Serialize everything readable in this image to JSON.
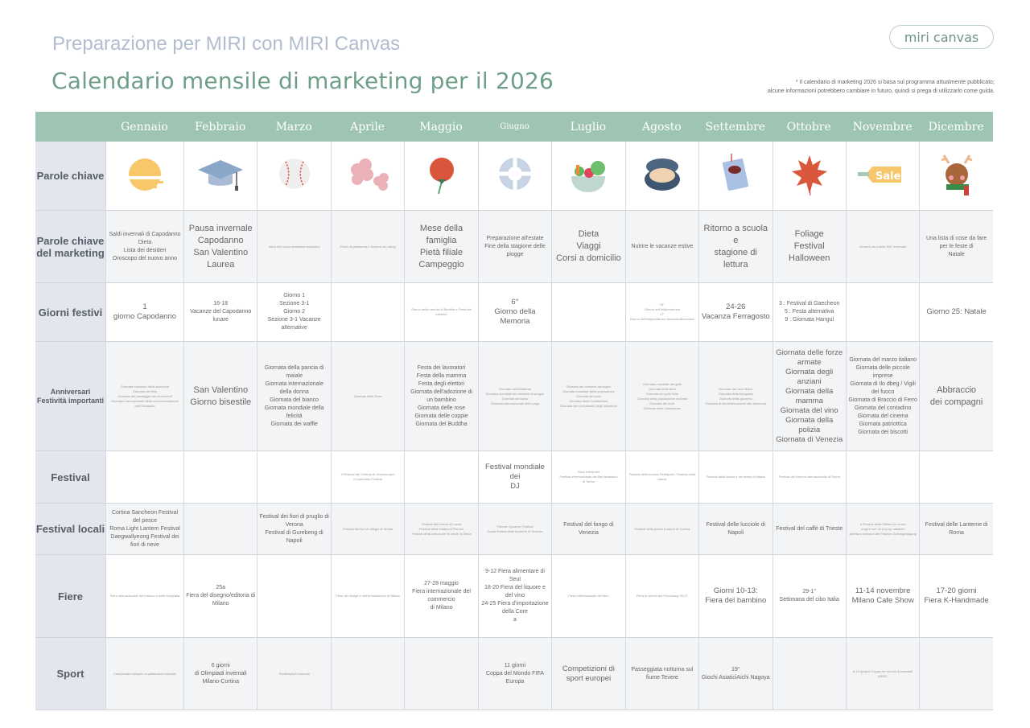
{
  "header": {
    "subtitle": "Preparazione per MIRI con MIRI Canvas",
    "title": "Calendario mensile di marketing per il 2026",
    "logo": "miri canvas",
    "note": [
      "* Il calendario di marketing 2026 si basa sul programma attualmente pubblicato;",
      "alcune informazioni potrebbero cambiare in futuro, quindi si prega di utilizzarlo come guida."
    ]
  },
  "months": [
    "Gennaio",
    "Febbraio",
    "Marzo",
    "Aprile",
    "Maggio",
    "Giugno",
    "Luglio",
    "Agosto",
    "Settembre",
    "Ottobre",
    "Novembre",
    "Dicembre"
  ],
  "keyword_icons": [
    "sunrise-icon",
    "graduation-cap-icon",
    "baseball-icon",
    "cherry-blossom-icon",
    "carnation-icon",
    "swim-ring-icon",
    "salad-bowl-icon",
    "samgyetang-pot-icon",
    "book-icon",
    "maple-leaf-icon",
    "sale-tag-icon",
    "reindeer-icon"
  ],
  "colors": {
    "header_green": "#9ec4b4",
    "title_green": "#6e9e88",
    "subtitle": "#b1bccf"
  },
  "rows": [
    {
      "label": "Parole chiave",
      "cells": []
    },
    {
      "label": "Parole chiave del marketing",
      "cells": [
        [
          "Saldi invernali di Capodanno",
          "Dieta",
          "Lista dei desideri",
          "Oroscopo del nuovo anno"
        ],
        [
          "Pausa invernale",
          "Capodanno",
          "San Valentino",
          "Laurea"
        ],
        [
          "Inizio del nuovo semestre scolastico"
        ],
        [
          "Picnic di primavera e fioritura dei ciliegi"
        ],
        [
          "Mese della famiglia",
          "Pietà filiale",
          "Campeggio"
        ],
        [
          "Preparazione all'estate",
          "Fine della stagione delle piogge"
        ],
        [
          "Dieta",
          "Viaggi",
          "Corsi a domicilio"
        ],
        [
          "Nutrire le vacanze estive"
        ],
        [
          "Ritorno a scuola",
          "e",
          "stagione di lettura"
        ],
        [
          "Foliage",
          "Festival",
          "Halloween"
        ],
        [
          "Venerdì nero della SAT invernale"
        ],
        [
          "Una lista di cose da fare",
          "per le feste di",
          "Natale"
        ]
      ]
    },
    {
      "label": "Giorni festivi",
      "cells": [
        [
          "1",
          "giorno Capodanno"
        ],
        [
          "16-18",
          "Vacanze del Capodanno lunare"
        ],
        [
          "Giorno 1",
          "Sezione 3-1",
          "Giorno 2",
          "Sezione 3-1 Vacanze alternative"
        ],
        [],
        [
          "Giorno della nascita di Buddha e Festa dei bambini"
        ],
        [
          "6°",
          "Giorno della Memoria"
        ],
        [],
        [
          "15°",
          "Giorno dell'indipendenza",
          "17°",
          "Giorno dell'indipendenza Vacanza alternativa"
        ],
        [
          "24-26",
          "Vacanza Ferragosto"
        ],
        [
          "3 : Festival di Gaecheon",
          "5 : Festa alternativa",
          "9 : Giornata Hangul"
        ],
        [],
        [
          "Giorno 25: Natale"
        ]
      ]
    },
    {
      "label": "Anniversari Festività importanti",
      "cells": [
        [
          "Giornata mondiale della sicurezza",
          "Giornata del Wiki",
          "Giornata del passaggio dei documenti",
          "Giornata internazionale della commemorazione dell'Olocausto"
        ],
        [
          "San Valentino",
          "Giorno bisestile"
        ],
        [
          "Giornata della pancia di maiale",
          "Giornata internazionale della donna",
          "Giornata del bianco",
          "Giornata mondiale della felicità",
          "Giornata dei waffle"
        ],
        [
          "Giornata della Terra"
        ],
        [
          "Festa dei lavoratori",
          "Festa della mamma",
          "Festa degli elettori",
          "Giornata dell'adozione di un bambino",
          "Giornata delle rose",
          "Giornata delle coppie",
          "Giornata del Buddha"
        ],
        [
          "Giornata dell'ambiente",
          "Giornata mondiale dei donatori di sangue",
          "Giornata del bacio",
          "Giornata internazionale dello yoga"
        ],
        [
          "Giornata del costume da bagno",
          "Giornata mondiale della popolazione",
          "Giornata del pollo",
          "Giornata della Costituzione",
          "Giornata dei compleanni degli investitori"
        ],
        [
          "Giornata mondiale dei gatti",
          "Giornata della birra",
          "Giornata del pollo fritto",
          "Giornata della popolazione anziana",
          "Giornata dei dolci",
          "Giornata della Liberazione"
        ],
        [
          "Giornata del cavo libero",
          "Giornata della fotografia",
          "Giornata della gioventù",
          "Giornata di sensibilizzazione alla demenza"
        ],
        [
          "Giornata delle forze armate",
          "Giornata degli anziani",
          "Giornata della mamma",
          "Giornata del vino",
          "Giornata della polizia",
          "Giornata di Venezia"
        ],
        [
          "Giornata del marzo italiano",
          "Giornata delle piccole imprese",
          "Giornata di Ilo dbeg / Vigili del fuoco",
          "Giornata di Braccio di Ferro",
          "Giornata del contadino",
          "Giornata del cinema",
          "Giornata patriottica",
          "Giornata dei biscotti"
        ],
        [
          "Abbraccio",
          "dei compagni"
        ]
      ]
    },
    {
      "label": "Festival",
      "cells": [
        [],
        [],
        [],
        [
          "Il Festival del Cinema di Venezia apre",
          "il Coachella Festival"
        ],
        [],
        [
          "Festival mondiale dei",
          "DJ"
        ],
        [
          "Rock Interpoint",
          "Festival internazionale del film fantastico",
          "di Torino"
        ],
        [
          "Festival della musica Pentaport / Festival della danza"
        ],
        [
          "Festival della danza e del teatro di strada"
        ],
        [
          "Festival del cinema internazionale di Roma"
        ],
        [],
        []
      ]
    },
    {
      "label": "Festival locali",
      "cells": [
        [
          "Cortina Sancheon Festival del pesce",
          "Roma Light Lantern Festival",
          "Daegwallyeong Festival dei fiori di neve"
        ],
        [],
        [
          "Festival dei fiori di pruglio di Verona",
          "Festival di Gurebeng di Napoli"
        ],
        [
          "Festival dei fiori di ciliegio di Jinhae"
        ],
        [
          "Festival dell'ombra di Lucca",
          "Festival della farfalla di Firenze",
          "Festival della cultura del tè verde di Siena"
        ],
        [
          "Firenze Dynamic Festival",
          "Gaudi festival delle lanterne di Venezia"
        ],
        [
          "Festival del fango di Venezia"
        ],
        [
          "Festival della pesca a calore di Cortina"
        ],
        [
          "Festival delle lucciole di Napoli"
        ],
        [
          "Festival del caffè di Trieste"
        ],
        [
          "Il Festival della Offesa più a sud",
          "si apre con un pop-up natalizio",
          "Apertura notturna del Palazzo Gyeongbokgung"
        ],
        [
          "Festival delle Lanterne di Roma"
        ]
      ]
    },
    {
      "label": "Fiere",
      "cells": [
        [
          "Fiera internazionale del turismo e della fotografia"
        ],
        [
          "25a",
          "Fiera del disegno/editoria di Milano"
        ],
        [],
        [
          "Fiera del design e dell'arredamento di Milano"
        ],
        [
          "27-28 maggio",
          "Fiera internazionale del commercio",
          "di Milano"
        ],
        [
          "9-12 Fiera alimentare di Seul",
          "18-20 Fiera del liquore e del vino",
          "24-25 Fiera d'importazione della Core",
          "a"
        ],
        [
          "Fiera internazionale del libro"
        ],
        [
          "Fiera di arredo del Pulochang 25-27"
        ],
        [
          "Giorni 10-13:",
          "Fiera del bambino"
        ],
        [
          "29-1°",
          "Settimana del cibo Italia"
        ],
        [
          "11-14 novembre",
          "Milano Cafe Show"
        ],
        [
          "17-20 giorni",
          "Fiera K-Handmade"
        ]
      ]
    },
    {
      "label": "Sport",
      "cells": [
        [
          "Campionato europeo di pallamano maschile"
        ],
        [
          "6 giorni",
          "di Olimpiadi invernali Milano-Cortina"
        ],
        [
          "Paralimpiadi invernali"
        ],
        [],
        [],
        [
          "11 giorni",
          "Coppa del Mondo FIFA Europa"
        ],
        [
          "Competizioni di",
          "sport europei"
        ],
        [
          "Passeggiata notturna sul fiume Tevere"
        ],
        [
          "19°",
          "Giochi AsiaticiAichi Nagoya"
        ],
        [],
        [
          "6-15 giugno Coppa del mondo di baseball WBSC"
        ],
        []
      ]
    }
  ]
}
